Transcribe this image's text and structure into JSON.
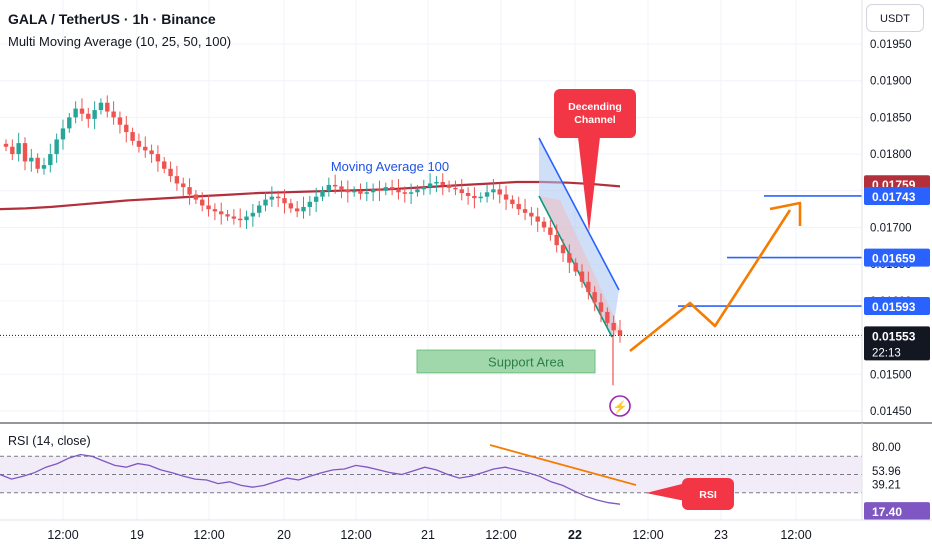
{
  "header": {
    "symbol_line": "GALA / TetherUS · 1h · Binance",
    "indicator_line": "Multi Moving Average (10, 25, 50, 100)",
    "currency_button": "USDT"
  },
  "colors": {
    "up": "#26a69a",
    "down": "#ef5350",
    "ma": "#b22f3c",
    "rsi_line": "#7e57c2",
    "rsi_band": "#ede7f6",
    "hline": "#2962ff",
    "arrow": "#f57c00",
    "support_fill": "#8fd19e",
    "channel_fill": "#a7c4f3",
    "callout": "#f23645"
  },
  "chart_data": [
    {
      "type": "candlestick",
      "title": "GALA / TetherUS · 1h · Binance",
      "ylim": [
        0.0144,
        0.0197
      ],
      "y_ticks": [
        "0.01950",
        "0.01900",
        "0.01850",
        "0.01800",
        "0.01750",
        "0.01700",
        "0.01650",
        "0.01600",
        "0.01550",
        "0.01500",
        "0.01450"
      ],
      "x_ticks": [
        "12:00",
        "19",
        "12:00",
        "20",
        "12:00",
        "21",
        "12:00",
        "22",
        "12:00",
        "23",
        "12:00"
      ],
      "price_path": [
        0.0181,
        0.018,
        0.01815,
        0.0179,
        0.01795,
        0.0178,
        0.01785,
        0.018,
        0.0182,
        0.01835,
        0.0185,
        0.01862,
        0.01855,
        0.01848,
        0.0186,
        0.0187,
        0.01858,
        0.0185,
        0.0184,
        0.0183,
        0.01818,
        0.0181,
        0.01805,
        0.018,
        0.0179,
        0.0178,
        0.0177,
        0.0176,
        0.01755,
        0.01745,
        0.01738,
        0.0173,
        0.01725,
        0.01722,
        0.01718,
        0.01715,
        0.01712,
        0.0171,
        0.01715,
        0.0172,
        0.0173,
        0.01738,
        0.01742,
        0.0174,
        0.01733,
        0.01726,
        0.01722,
        0.01728,
        0.01735,
        0.01742,
        0.0175,
        0.01758,
        0.01756,
        0.01752,
        0.01748,
        0.0175,
        0.01746,
        0.01748,
        0.01752,
        0.0175,
        0.01755,
        0.01752,
        0.01748,
        0.01746,
        0.01748,
        0.01752,
        0.01755,
        0.0176,
        0.01762,
        0.01758,
        0.01754,
        0.01752,
        0.01747,
        0.01743,
        0.0174,
        0.01742,
        0.01748,
        0.01752,
        0.01745,
        0.01738,
        0.01732,
        0.01725,
        0.0172,
        0.01715,
        0.01708,
        0.017,
        0.0169,
        0.01676,
        0.01665,
        0.01652,
        0.0164,
        0.01626,
        0.01612,
        0.01598,
        0.01585,
        0.0157,
        0.0156,
        0.01553
      ],
      "price_x_range": [
        "18 08:00",
        "22 07:00"
      ],
      "series": [
        {
          "name": "Moving Average 100",
          "values": [
            0.01725,
            0.01726,
            0.01728,
            0.01731,
            0.01734,
            0.01737,
            0.01739,
            0.01741,
            0.01743,
            0.01745,
            0.01747,
            0.01748,
            0.01749,
            0.0175,
            0.01751,
            0.01752,
            0.01754,
            0.01756,
            0.01758,
            0.0176,
            0.01762,
            0.01762,
            0.01761,
            0.01759,
            0.01756
          ]
        }
      ],
      "levels": [
        {
          "label": "0.01759",
          "value": 0.01759,
          "color": "#b22f3c"
        },
        {
          "label": "0.01743",
          "value": 0.01743,
          "color": "#2962ff"
        },
        {
          "label": "0.01659",
          "value": 0.01659,
          "color": "#2962ff"
        },
        {
          "label": "0.01593",
          "value": 0.01593,
          "color": "#2962ff"
        },
        {
          "label": "0.01553",
          "value": 0.01553,
          "color": "#131722"
        }
      ],
      "countdown": "22:13",
      "support_zone": {
        "label": "Support Area",
        "low": 0.01502,
        "high": 0.01533
      },
      "descending_channel": {
        "label": "Decending\nChannel",
        "callout_lines": [
          "Decending",
          "Channel"
        ]
      },
      "ma_label": "Moving Average 100",
      "projection": [
        0.0153,
        0.01575,
        0.01592,
        0.0157,
        0.01725
      ]
    },
    {
      "type": "line",
      "title": "RSI (14, close)",
      "ylim": [
        0,
        100
      ],
      "y_ticks": [
        "80.00",
        "53.96",
        "39.21"
      ],
      "current_value_label": "17.40",
      "series": [
        {
          "name": "RSI (14, close)",
          "values": [
            50,
            45,
            48,
            52,
            58,
            62,
            68,
            72,
            70,
            65,
            60,
            58,
            62,
            60,
            55,
            52,
            48,
            45,
            44,
            40,
            42,
            38,
            36,
            38,
            42,
            46,
            44,
            48,
            52,
            55,
            56,
            60,
            58,
            55,
            52,
            50,
            54,
            58,
            55,
            50,
            46,
            48,
            52,
            56,
            58,
            55,
            52,
            48,
            42,
            38,
            32,
            26,
            22,
            19,
            17.4
          ]
        }
      ],
      "callout": "RSI"
    }
  ]
}
